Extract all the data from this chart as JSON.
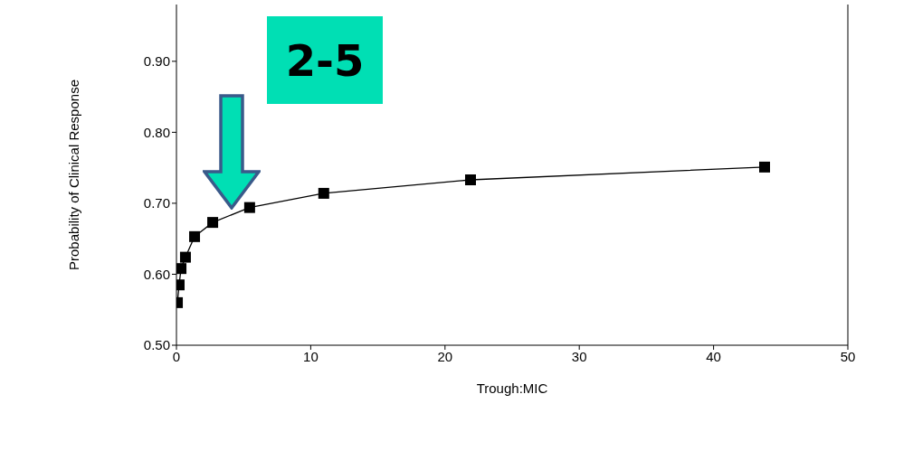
{
  "chart_data": {
    "type": "line",
    "xlabel": "Trough:MIC",
    "ylabel": "Probability of Clinical Response",
    "x": [
      0.07,
      0.2,
      0.34,
      0.67,
      1.35,
      2.7,
      5.45,
      10.97,
      21.9,
      43.8
    ],
    "values": [
      0.56,
      0.585,
      0.608,
      0.624,
      0.653,
      0.673,
      0.694,
      0.714,
      0.733,
      0.751
    ],
    "color": "#000000",
    "marker": "square",
    "xlim": [
      0,
      50
    ],
    "xticks": [
      0,
      10,
      20,
      30,
      40,
      50
    ],
    "ylim": [
      0.5,
      0.98
    ],
    "yticks": [
      {
        "value": 0.5,
        "label": "0.50"
      },
      {
        "value": 0.6,
        "label": "0.60"
      },
      {
        "value": 0.7,
        "label": "0.70"
      },
      {
        "value": 0.8,
        "label": "0.80"
      },
      {
        "value": 0.9,
        "label": "0.90"
      }
    ],
    "annotations": [
      "2-5"
    ]
  }
}
